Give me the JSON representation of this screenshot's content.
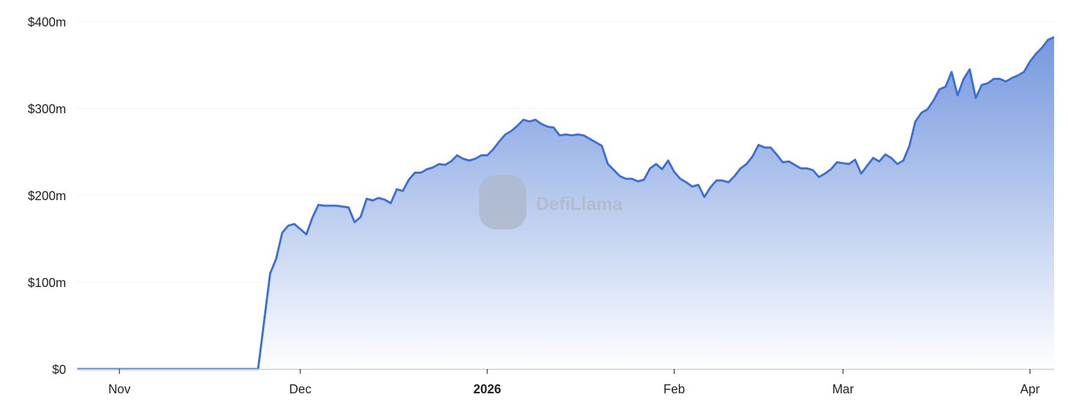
{
  "chart_data": {
    "type": "area",
    "title": "",
    "xlabel": "",
    "ylabel": "",
    "xlim": [
      "2025-10-25",
      "2026-04-05"
    ],
    "ylim": [
      0,
      400
    ],
    "grid": true,
    "legend": "none",
    "y_ticks": [
      {
        "value": 0,
        "label": "$0"
      },
      {
        "value": 100,
        "label": "$100m"
      },
      {
        "value": 200,
        "label": "$200m"
      },
      {
        "value": 300,
        "label": "$300m"
      },
      {
        "value": 400,
        "label": "$400m"
      }
    ],
    "x_ticks": [
      {
        "date": "2025-11-01",
        "label": "Nov",
        "bold": false
      },
      {
        "date": "2025-12-01",
        "label": "Dec",
        "bold": false
      },
      {
        "date": "2026-01-01",
        "label": "2026",
        "bold": true
      },
      {
        "date": "2026-02-01",
        "label": "Feb",
        "bold": false
      },
      {
        "date": "2026-03-01",
        "label": "Mar",
        "bold": false
      },
      {
        "date": "2026-04-01",
        "label": "Apr",
        "bold": false
      }
    ],
    "colors": {
      "line": "#3a6fd8",
      "fill_top": "#6f93dc",
      "fill_bottom": "#ffffff",
      "grid": "#f0f0f3",
      "axis": "#c8ccd6"
    },
    "watermark": "DefiLlama",
    "series": [
      {
        "unit": "$m",
        "points": [
          [
            "2025-10-25",
            0
          ],
          [
            "2025-11-24",
            0
          ],
          [
            "2025-11-26",
            110
          ],
          [
            "2025-11-27",
            127
          ],
          [
            "2025-11-28",
            157
          ],
          [
            "2025-11-29",
            165
          ],
          [
            "2025-11-30",
            167
          ],
          [
            "2025-12-02",
            155
          ],
          [
            "2025-12-03",
            174
          ],
          [
            "2025-12-04",
            189
          ],
          [
            "2025-12-05",
            188
          ],
          [
            "2025-12-07",
            188
          ],
          [
            "2025-12-09",
            186
          ],
          [
            "2025-12-10",
            169
          ],
          [
            "2025-12-11",
            175
          ],
          [
            "2025-12-12",
            196
          ],
          [
            "2025-12-13",
            194
          ],
          [
            "2025-12-14",
            197
          ],
          [
            "2025-12-15",
            195
          ],
          [
            "2025-12-16",
            191
          ],
          [
            "2025-12-17",
            207
          ],
          [
            "2025-12-18",
            205
          ],
          [
            "2025-12-19",
            218
          ],
          [
            "2025-12-20",
            226
          ],
          [
            "2025-12-21",
            226
          ],
          [
            "2025-12-22",
            230
          ],
          [
            "2025-12-23",
            232
          ],
          [
            "2025-12-24",
            236
          ],
          [
            "2025-12-25",
            235
          ],
          [
            "2025-12-26",
            239
          ],
          [
            "2025-12-27",
            246
          ],
          [
            "2025-12-28",
            242
          ],
          [
            "2025-12-29",
            240
          ],
          [
            "2025-12-30",
            242
          ],
          [
            "2025-12-31",
            246
          ],
          [
            "2026-01-01",
            246
          ],
          [
            "2026-01-02",
            253
          ],
          [
            "2026-01-03",
            262
          ],
          [
            "2026-01-04",
            270
          ],
          [
            "2026-01-05",
            274
          ],
          [
            "2026-01-06",
            280
          ],
          [
            "2026-01-07",
            287
          ],
          [
            "2026-01-08",
            285
          ],
          [
            "2026-01-09",
            287
          ],
          [
            "2026-01-10",
            282
          ],
          [
            "2026-01-11",
            279
          ],
          [
            "2026-01-12",
            278
          ],
          [
            "2026-01-13",
            269
          ],
          [
            "2026-01-14",
            270
          ],
          [
            "2026-01-15",
            269
          ],
          [
            "2026-01-16",
            270
          ],
          [
            "2026-01-17",
            269
          ],
          [
            "2026-01-18",
            265
          ],
          [
            "2026-01-19",
            261
          ],
          [
            "2026-01-20",
            257
          ],
          [
            "2026-01-21",
            236
          ],
          [
            "2026-01-22",
            229
          ],
          [
            "2026-01-23",
            222
          ],
          [
            "2026-01-24",
            219
          ],
          [
            "2026-01-25",
            219
          ],
          [
            "2026-01-26",
            216
          ],
          [
            "2026-01-27",
            218
          ],
          [
            "2026-01-28",
            231
          ],
          [
            "2026-01-29",
            236
          ],
          [
            "2026-01-30",
            230
          ],
          [
            "2026-01-31",
            240
          ],
          [
            "2026-02-01",
            227
          ],
          [
            "2026-02-02",
            219
          ],
          [
            "2026-02-03",
            215
          ],
          [
            "2026-02-04",
            210
          ],
          [
            "2026-02-05",
            212
          ],
          [
            "2026-02-06",
            198
          ],
          [
            "2026-02-07",
            209
          ],
          [
            "2026-02-08",
            217
          ],
          [
            "2026-02-09",
            217
          ],
          [
            "2026-02-10",
            215
          ],
          [
            "2026-02-11",
            222
          ],
          [
            "2026-02-12",
            231
          ],
          [
            "2026-02-13",
            236
          ],
          [
            "2026-02-14",
            245
          ],
          [
            "2026-02-15",
            258
          ],
          [
            "2026-02-16",
            255
          ],
          [
            "2026-02-17",
            255
          ],
          [
            "2026-02-18",
            247
          ],
          [
            "2026-02-19",
            238
          ],
          [
            "2026-02-20",
            239
          ],
          [
            "2026-02-21",
            235
          ],
          [
            "2026-02-22",
            231
          ],
          [
            "2026-02-23",
            231
          ],
          [
            "2026-02-24",
            229
          ],
          [
            "2026-02-25",
            221
          ],
          [
            "2026-02-26",
            225
          ],
          [
            "2026-02-27",
            230
          ],
          [
            "2026-02-28",
            238
          ],
          [
            "2026-03-01",
            237
          ],
          [
            "2026-03-02",
            236
          ],
          [
            "2026-03-03",
            241
          ],
          [
            "2026-03-04",
            225
          ],
          [
            "2026-03-05",
            234
          ],
          [
            "2026-03-06",
            243
          ],
          [
            "2026-03-07",
            239
          ],
          [
            "2026-03-08",
            247
          ],
          [
            "2026-03-09",
            243
          ],
          [
            "2026-03-10",
            236
          ],
          [
            "2026-03-11",
            240
          ],
          [
            "2026-03-12",
            257
          ],
          [
            "2026-03-13",
            285
          ],
          [
            "2026-03-14",
            295
          ],
          [
            "2026-03-15",
            299
          ],
          [
            "2026-03-16",
            309
          ],
          [
            "2026-03-17",
            322
          ],
          [
            "2026-03-18",
            325
          ],
          [
            "2026-03-19",
            342
          ],
          [
            "2026-03-20",
            315
          ],
          [
            "2026-03-21",
            334
          ],
          [
            "2026-03-22",
            345
          ],
          [
            "2026-03-23",
            312
          ],
          [
            "2026-03-24",
            327
          ],
          [
            "2026-03-25",
            329
          ],
          [
            "2026-03-26",
            334
          ],
          [
            "2026-03-27",
            334
          ],
          [
            "2026-03-28",
            331
          ],
          [
            "2026-03-29",
            335
          ],
          [
            "2026-03-30",
            338
          ],
          [
            "2026-03-31",
            342
          ],
          [
            "2026-04-01",
            354
          ],
          [
            "2026-04-02",
            363
          ],
          [
            "2026-04-03",
            370
          ],
          [
            "2026-04-04",
            379
          ],
          [
            "2026-04-05",
            382
          ]
        ]
      }
    ]
  }
}
